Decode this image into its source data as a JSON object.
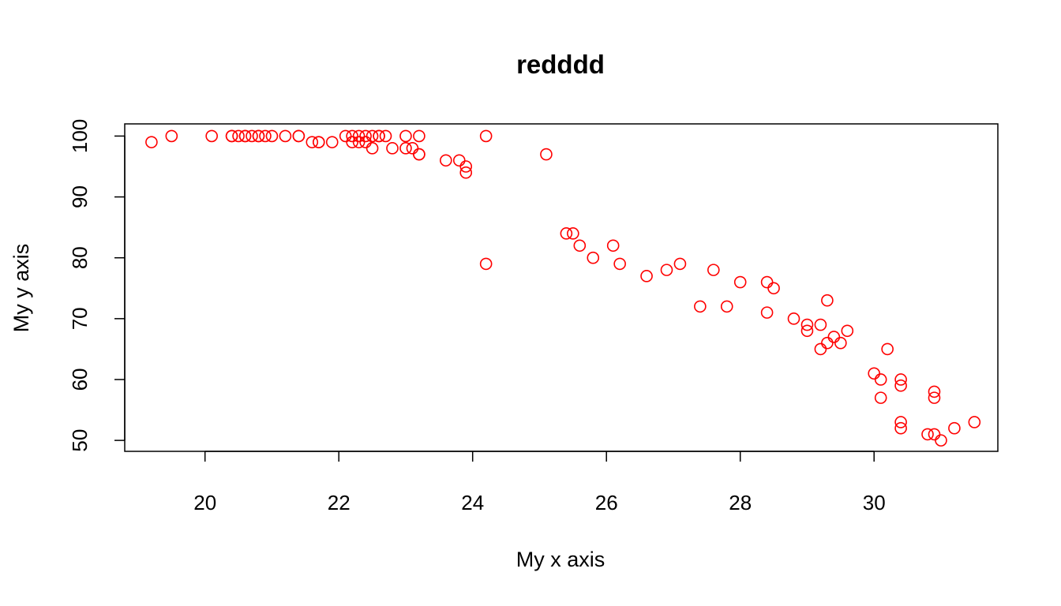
{
  "chart_data": {
    "type": "scatter",
    "title": "redddd",
    "xlabel": "My x axis",
    "ylabel": "My y axis",
    "xlim": [
      18.8,
      31.85
    ],
    "ylim": [
      48.2,
      102
    ],
    "xticks": [
      20,
      22,
      24,
      26,
      28,
      30
    ],
    "yticks": [
      50,
      60,
      70,
      80,
      90,
      100
    ],
    "grid": false,
    "marker_color": "#ff0000",
    "marker": "open-circle",
    "x": [
      19.2,
      19.5,
      20.1,
      20.4,
      20.4,
      20.5,
      20.6,
      20.6,
      20.7,
      20.8,
      20.8,
      20.9,
      21.0,
      21.2,
      21.4,
      21.4,
      21.6,
      21.7,
      21.7,
      21.9,
      22.1,
      22.2,
      22.2,
      22.3,
      22.3,
      22.4,
      22.4,
      22.5,
      22.5,
      22.6,
      22.6,
      22.7,
      22.8,
      23.0,
      23.0,
      23.1,
      23.2,
      23.2,
      23.2,
      23.6,
      23.8,
      23.9,
      23.9,
      24.2,
      24.2,
      25.1,
      25.4,
      25.5,
      25.6,
      25.8,
      26.1,
      26.2,
      26.6,
      26.9,
      27.1,
      27.4,
      27.6,
      27.8,
      28.0,
      28.4,
      28.4,
      28.5,
      28.8,
      29.0,
      29.0,
      29.2,
      29.2,
      29.3,
      29.3,
      29.4,
      29.5,
      29.6,
      30.0,
      30.1,
      30.1,
      30.2,
      30.4,
      30.4,
      30.4,
      30.4,
      30.8,
      30.9,
      30.9,
      30.9,
      31.0,
      31.2,
      31.5
    ],
    "y": [
      99,
      100,
      100,
      100,
      100,
      100,
      100,
      100,
      100,
      100,
      100,
      100,
      100,
      100,
      100,
      100,
      99,
      99,
      99,
      99,
      100,
      100,
      99,
      100,
      99,
      100,
      99,
      100,
      98,
      100,
      100,
      100,
      98,
      100,
      98,
      98,
      100,
      97,
      97,
      96,
      96,
      95,
      94,
      100,
      79,
      97,
      84,
      84,
      82,
      80,
      82,
      79,
      77,
      78,
      79,
      72,
      78,
      72,
      76,
      76,
      71,
      75,
      70,
      69,
      68,
      69,
      65,
      73,
      66,
      67,
      66,
      68,
      61,
      60,
      57,
      65,
      60,
      59,
      53,
      52,
      51,
      58,
      57,
      51,
      50,
      52,
      53
    ]
  }
}
